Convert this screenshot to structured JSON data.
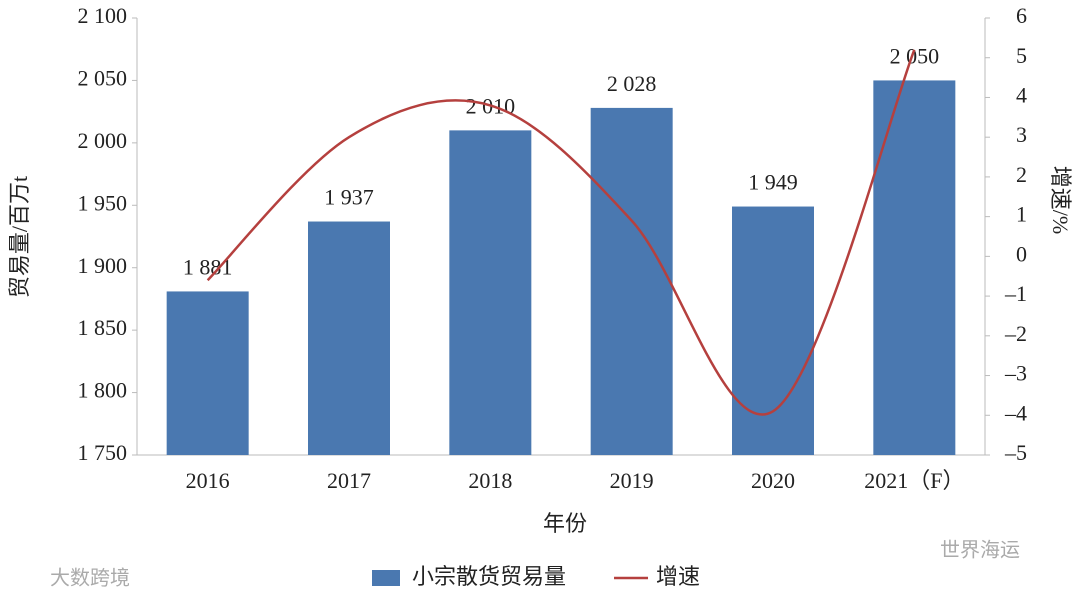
{
  "chart_data": {
    "type": "bar+line",
    "categories": [
      "2016",
      "2017",
      "2018",
      "2019",
      "2020",
      "2021（F）"
    ],
    "series": [
      {
        "name": "小宗散货贸易量",
        "type": "bar",
        "color": "#4a78b0",
        "values": [
          1881,
          1937,
          2010,
          2028,
          1949,
          2050
        ],
        "value_labels": [
          "1 881",
          "1 937",
          "2 010",
          "2 028",
          "1 949",
          "2 050"
        ]
      },
      {
        "name": "增速",
        "type": "line",
        "color": "#b5403e",
        "axis": "y2",
        "values": [
          -0.6,
          3.0,
          3.8,
          0.9,
          -3.9,
          5.2
        ]
      }
    ],
    "ylim": [
      1750,
      2100
    ],
    "yticks": [
      {
        "value": 1750,
        "label": "1 750"
      },
      {
        "value": 1800,
        "label": "1 800"
      },
      {
        "value": 1850,
        "label": "1 850"
      },
      {
        "value": 1900,
        "label": "1 900"
      },
      {
        "value": 1950,
        "label": "1 950"
      },
      {
        "value": 2000,
        "label": "2 000"
      },
      {
        "value": 2050,
        "label": "2 050"
      },
      {
        "value": 2100,
        "label": "2 100"
      }
    ],
    "y2lim": [
      -5,
      6
    ],
    "y2ticks": [
      {
        "value": -5,
        "label": "–5"
      },
      {
        "value": -4,
        "label": "–4"
      },
      {
        "value": -3,
        "label": "–3"
      },
      {
        "value": -2,
        "label": "–2"
      },
      {
        "value": -1,
        "label": "–1"
      },
      0,
      1,
      2,
      3,
      4,
      5,
      6
    ],
    "xlabel": "年份",
    "ylabel": "贸易量/百万t",
    "y2label": "增速/%",
    "watermarks": [
      "世界海运",
      "大数跨境"
    ]
  }
}
